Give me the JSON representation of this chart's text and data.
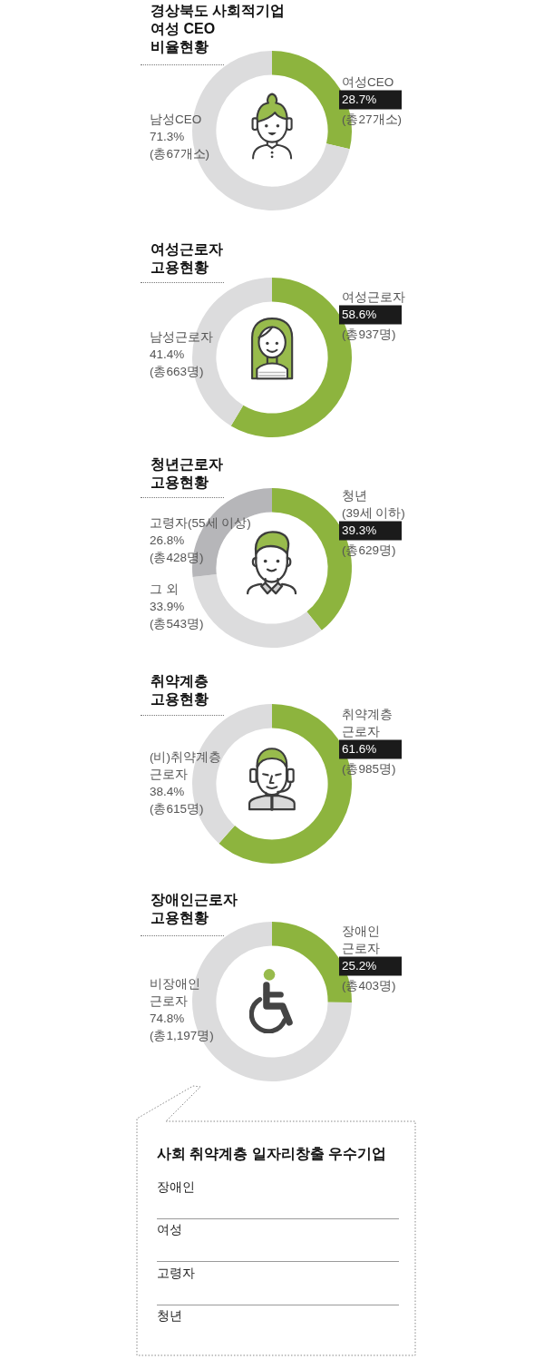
{
  "chart_data": [
    {
      "type": "donut",
      "title": "경상북도 사회적기업\n여성 CEO\n비율현황",
      "categories": [
        "여성CEO",
        "남성CEO"
      ],
      "values": [
        28.7,
        71.3
      ],
      "colors": [
        "#8db43e",
        "#dcdcdd"
      ],
      "value_labels": [
        "28.7%",
        "71.3%"
      ],
      "annotations": [
        "(총27개소)",
        "(총67개소)"
      ]
    },
    {
      "type": "donut",
      "title": "여성근로자\n고용현황",
      "categories": [
        "여성근로자",
        "남성근로자"
      ],
      "values": [
        58.6,
        41.4
      ],
      "colors": [
        "#8db43e",
        "#dcdcdd"
      ],
      "value_labels": [
        "58.6%",
        "41.4%"
      ],
      "annotations": [
        "(총937명)",
        "(총663명)"
      ]
    },
    {
      "type": "donut",
      "title": "청년근로자\n고용현황",
      "categories": [
        "청년\n(39세 이하)",
        "그 외",
        "고령자(55세 이상)"
      ],
      "values": [
        39.3,
        33.9,
        26.8
      ],
      "colors": [
        "#8db43e",
        "#dcdcdd",
        "#b6b6b9"
      ],
      "value_labels": [
        "39.3%",
        "33.9%",
        "26.8%"
      ],
      "annotations": [
        "(총629명)",
        "(총543명)",
        "(총428명)"
      ]
    },
    {
      "type": "donut",
      "title": "취약계층\n고용현황",
      "categories": [
        "취약계층\n근로자",
        "(비)취약계층\n근로자"
      ],
      "values": [
        61.6,
        38.4
      ],
      "colors": [
        "#8db43e",
        "#dcdcdd"
      ],
      "value_labels": [
        "61.6%",
        "38.4%"
      ],
      "annotations": [
        "(총985명)",
        "(총615명)"
      ]
    },
    {
      "type": "donut",
      "title": "장애인근로자\n고용현황",
      "categories": [
        "장애인\n근로자",
        "비장애인\n근로자"
      ],
      "values": [
        25.2,
        74.8
      ],
      "colors": [
        "#8db43e",
        "#dcdcdd"
      ],
      "value_labels": [
        "25.2%",
        "74.8%"
      ],
      "annotations": [
        "(총403명)",
        "(총1,197명)"
      ]
    },
    {
      "type": "other",
      "title": "사회 취약계층 일자리창출 우수기업",
      "categories": [
        "장애인",
        "여성",
        "고령자",
        "청년"
      ]
    }
  ]
}
